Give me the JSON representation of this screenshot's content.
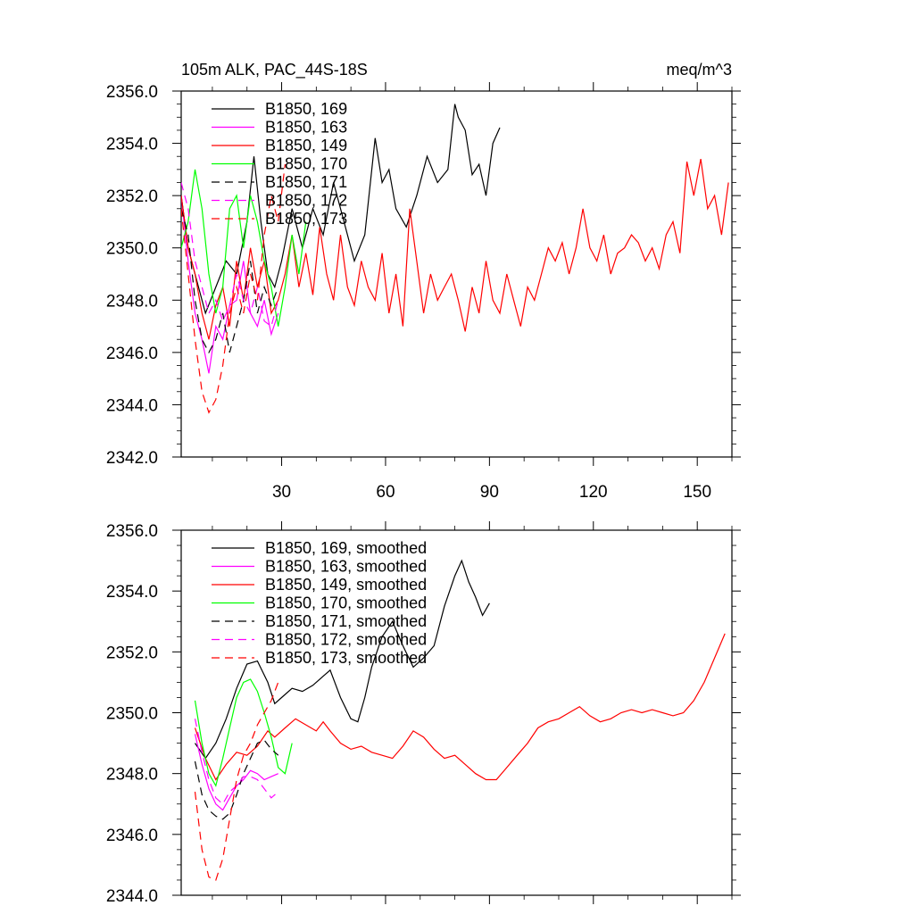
{
  "title_left": "105m ALK, PAC_44S-18S",
  "title_right": "meq/m^3",
  "chart_data": [
    {
      "type": "line",
      "panel": "top",
      "title": "105m ALK, PAC_44S-18S",
      "units": "meq/m^3",
      "xlim": [
        1,
        160
      ],
      "ylim": [
        2342.0,
        2356.0
      ],
      "x_ticks": [
        30,
        60,
        90,
        120,
        150
      ],
      "x_tick_labels": [
        "30",
        "60",
        "90",
        "120",
        "150"
      ],
      "y_ticks": [
        2342.0,
        2344.0,
        2346.0,
        2348.0,
        2350.0,
        2352.0,
        2354.0,
        2356.0
      ],
      "y_tick_labels": [
        "2342.0",
        "2344.0",
        "2346.0",
        "2348.0",
        "2350.0",
        "2352.0",
        "2354.0",
        "2356.0"
      ],
      "legend_position": "top-left",
      "series": [
        {
          "name": "B1850, 169",
          "color": "#000000",
          "dash": "solid",
          "x": [
            1,
            3,
            5,
            8,
            11,
            14,
            17,
            20,
            22,
            24,
            26,
            28,
            30,
            33,
            36,
            39,
            42,
            45,
            48,
            51,
            54,
            57,
            59,
            61,
            63,
            66,
            69,
            72,
            75,
            78,
            80,
            81,
            83,
            85,
            87,
            89,
            91,
            93
          ],
          "y": [
            2352.0,
            2350.0,
            2349.0,
            2347.5,
            2348.5,
            2349.5,
            2349.0,
            2351.0,
            2353.5,
            2351.0,
            2349.0,
            2348.5,
            2349.5,
            2351.5,
            2350.0,
            2351.5,
            2350.5,
            2352.5,
            2351.0,
            2349.5,
            2350.5,
            2354.2,
            2352.5,
            2353.0,
            2351.5,
            2350.8,
            2352.0,
            2353.5,
            2352.5,
            2353.0,
            2355.5,
            2355.0,
            2354.5,
            2352.8,
            2353.2,
            2352.0,
            2354.0,
            2354.6
          ]
        },
        {
          "name": "B1850, 163",
          "color": "#ff00ff",
          "dash": "solid",
          "x": [
            1,
            3,
            5,
            7,
            9,
            11,
            13,
            15,
            17,
            19,
            21,
            23,
            25,
            27,
            29
          ],
          "y": [
            2352.0,
            2349.5,
            2347.5,
            2346.5,
            2345.2,
            2347.0,
            2346.5,
            2347.8,
            2348.0,
            2349.5,
            2347.5,
            2347.0,
            2348.0,
            2346.7,
            2347.5
          ]
        },
        {
          "name": "B1850, 149",
          "color": "#ff0000",
          "dash": "solid",
          "x": [
            1,
            3,
            5,
            7,
            9,
            11,
            13,
            15,
            17,
            19,
            21,
            23,
            25,
            27,
            29,
            31,
            33,
            35,
            37,
            39,
            41,
            43,
            45,
            47,
            49,
            51,
            53,
            55,
            57,
            59,
            61,
            63,
            65,
            67,
            69,
            71,
            73,
            75,
            77,
            79,
            81,
            83,
            85,
            87,
            89,
            91,
            93,
            95,
            97,
            99,
            101,
            103,
            105,
            107,
            109,
            111,
            113,
            115,
            117,
            119,
            121,
            123,
            125,
            127,
            129,
            131,
            133,
            135,
            137,
            139,
            141,
            143,
            145,
            147,
            149,
            151,
            153,
            155,
            157,
            159
          ],
          "y": [
            2352.0,
            2350.0,
            2349.0,
            2347.5,
            2346.5,
            2347.8,
            2348.5,
            2347.0,
            2349.5,
            2348.0,
            2350.0,
            2348.5,
            2349.5,
            2347.5,
            2348.0,
            2349.0,
            2350.5,
            2348.5,
            2349.8,
            2348.2,
            2350.8,
            2349.0,
            2348.0,
            2350.5,
            2348.5,
            2347.8,
            2349.5,
            2348.5,
            2348.0,
            2349.8,
            2347.5,
            2349.0,
            2347.0,
            2351.5,
            2349.5,
            2347.5,
            2349.0,
            2348.0,
            2348.5,
            2349.0,
            2348.0,
            2346.8,
            2348.5,
            2347.5,
            2349.5,
            2348.0,
            2347.5,
            2349.0,
            2348.0,
            2347.0,
            2348.5,
            2348.0,
            2349.0,
            2350.0,
            2349.5,
            2350.2,
            2349.0,
            2350.0,
            2351.5,
            2350.0,
            2349.5,
            2350.5,
            2349.0,
            2349.8,
            2350.0,
            2350.5,
            2350.2,
            2349.5,
            2350.0,
            2349.2,
            2350.5,
            2351.0,
            2349.8,
            2353.3,
            2352.0,
            2353.4,
            2351.5,
            2352.0,
            2350.5,
            2352.5
          ]
        },
        {
          "name": "B1850, 170",
          "color": "#00ff00",
          "dash": "solid",
          "x": [
            1,
            3,
            5,
            7,
            9,
            11,
            13,
            15,
            17,
            19,
            21,
            23,
            25,
            27,
            29,
            31,
            33,
            35,
            37
          ],
          "y": [
            2350.0,
            2351.0,
            2353.0,
            2351.5,
            2349.0,
            2347.5,
            2348.5,
            2351.5,
            2352.0,
            2350.0,
            2352.0,
            2351.0,
            2349.5,
            2348.5,
            2347.0,
            2348.5,
            2350.5,
            2349.0,
            2351.0
          ]
        },
        {
          "name": "B1850, 171",
          "color": "#000000",
          "dash": "dashed",
          "x": [
            1,
            3,
            5,
            7,
            9,
            11,
            13,
            15,
            17,
            19,
            21,
            23,
            25,
            27,
            29
          ],
          "y": [
            2351.5,
            2350.5,
            2348.0,
            2346.5,
            2346.0,
            2346.5,
            2347.5,
            2346.0,
            2347.0,
            2348.0,
            2349.5,
            2347.5,
            2348.5,
            2347.8,
            2348.5
          ]
        },
        {
          "name": "B1850, 172",
          "color": "#ff00ff",
          "dash": "dashed",
          "x": [
            1,
            3,
            5,
            7,
            9,
            11,
            13,
            15,
            17,
            19,
            21,
            23,
            25,
            27,
            29
          ],
          "y": [
            2352.5,
            2351.5,
            2349.5,
            2348.5,
            2347.5,
            2348.0,
            2347.2,
            2347.8,
            2349.0,
            2348.0,
            2347.5,
            2348.5,
            2347.2,
            2347.0,
            2348.0
          ]
        },
        {
          "name": "B1850, 173",
          "color": "#ff0000",
          "dash": "dashed",
          "x": [
            1,
            3,
            5,
            7,
            9,
            11,
            13,
            15,
            17,
            19,
            21,
            23,
            25,
            27,
            29,
            31
          ],
          "y": [
            2351.5,
            2349.0,
            2346.5,
            2344.5,
            2343.7,
            2344.2,
            2345.5,
            2347.5,
            2348.5,
            2347.5,
            2349.0,
            2348.0,
            2350.5,
            2352.0,
            2351.0,
            2353.2
          ]
        }
      ]
    },
    {
      "type": "line",
      "panel": "bottom",
      "xlim": [
        1,
        160
      ],
      "ylim": [
        2344.0,
        2356.0
      ],
      "y_ticks": [
        2344.0,
        2346.0,
        2348.0,
        2350.0,
        2352.0,
        2354.0,
        2356.0
      ],
      "y_tick_labels": [
        "2344.0",
        "2346.0",
        "2348.0",
        "2350.0",
        "2352.0",
        "2354.0",
        "2356.0"
      ],
      "legend_position": "top-left",
      "series": [
        {
          "name": "B1850, 169, smoothed",
          "color": "#000000",
          "dash": "solid",
          "x": [
            5,
            8,
            11,
            14,
            17,
            20,
            23,
            26,
            28,
            30,
            33,
            36,
            39,
            42,
            44,
            47,
            50,
            52,
            54,
            56,
            59,
            62,
            65,
            68,
            71,
            74,
            77,
            80,
            82,
            84,
            86,
            88,
            90
          ],
          "y": [
            2349.0,
            2348.5,
            2349.0,
            2349.8,
            2350.8,
            2351.6,
            2351.7,
            2351.0,
            2350.3,
            2350.5,
            2350.8,
            2350.7,
            2350.9,
            2351.2,
            2351.4,
            2350.5,
            2349.8,
            2349.7,
            2350.5,
            2351.5,
            2352.5,
            2353.0,
            2352.2,
            2351.5,
            2351.8,
            2352.2,
            2353.5,
            2354.5,
            2355.0,
            2354.3,
            2353.8,
            2353.2,
            2353.6
          ]
        },
        {
          "name": "B1850, 163, smoothed",
          "color": "#ff00ff",
          "dash": "solid",
          "x": [
            5,
            7,
            9,
            11,
            13,
            15,
            17,
            19,
            21,
            23,
            25,
            27,
            29
          ],
          "y": [
            2349.3,
            2348.3,
            2347.5,
            2347.0,
            2346.8,
            2347.2,
            2347.6,
            2347.8,
            2348.1,
            2348.0,
            2347.8,
            2347.9,
            2348.0
          ]
        },
        {
          "name": "B1850, 149, smoothed",
          "color": "#ff0000",
          "dash": "solid",
          "x": [
            5,
            8,
            11,
            14,
            17,
            20,
            23,
            26,
            28,
            31,
            34,
            37,
            40,
            42,
            44,
            47,
            50,
            53,
            56,
            59,
            62,
            65,
            68,
            71,
            74,
            77,
            80,
            83,
            86,
            89,
            92,
            95,
            98,
            101,
            104,
            107,
            110,
            113,
            116,
            119,
            122,
            125,
            128,
            131,
            134,
            137,
            140,
            143,
            146,
            149,
            152,
            155,
            158
          ],
          "y": [
            2349.5,
            2348.5,
            2347.8,
            2348.3,
            2348.7,
            2348.6,
            2348.9,
            2349.4,
            2349.2,
            2349.5,
            2349.8,
            2349.6,
            2349.4,
            2349.7,
            2349.4,
            2349.0,
            2348.8,
            2348.9,
            2348.7,
            2348.6,
            2348.5,
            2348.9,
            2349.4,
            2349.2,
            2348.8,
            2348.5,
            2348.6,
            2348.3,
            2348.0,
            2347.8,
            2347.8,
            2348.2,
            2348.6,
            2349.0,
            2349.5,
            2349.7,
            2349.8,
            2350.0,
            2350.2,
            2349.9,
            2349.7,
            2349.8,
            2350.0,
            2350.1,
            2350.0,
            2350.1,
            2350.0,
            2349.9,
            2350.0,
            2350.4,
            2351.0,
            2351.8,
            2352.6
          ]
        },
        {
          "name": "B1850, 170, smoothed",
          "color": "#00ff00",
          "dash": "solid",
          "x": [
            5,
            7,
            9,
            11,
            13,
            15,
            17,
            19,
            21,
            23,
            25,
            27,
            29,
            31,
            33
          ],
          "y": [
            2350.4,
            2349.0,
            2348.0,
            2347.6,
            2348.5,
            2349.5,
            2350.5,
            2351.0,
            2351.1,
            2350.7,
            2350.0,
            2349.2,
            2348.2,
            2348.0,
            2349.0
          ]
        },
        {
          "name": "B1850, 171, smoothed",
          "color": "#000000",
          "dash": "dashed",
          "x": [
            5,
            7,
            9,
            11,
            13,
            15,
            17,
            19,
            21,
            23,
            25,
            27,
            29
          ],
          "y": [
            2348.4,
            2347.3,
            2346.8,
            2346.6,
            2346.5,
            2346.7,
            2347.3,
            2348.0,
            2348.5,
            2349.0,
            2349.1,
            2348.8,
            2348.6
          ]
        },
        {
          "name": "B1850, 172, smoothed",
          "color": "#ff00ff",
          "dash": "dashed",
          "x": [
            5,
            7,
            9,
            11,
            13,
            15,
            17,
            19,
            21,
            23,
            25,
            27,
            29
          ],
          "y": [
            2349.8,
            2348.7,
            2347.8,
            2347.2,
            2347.0,
            2347.4,
            2347.6,
            2347.9,
            2347.9,
            2347.8,
            2347.5,
            2347.2,
            2347.4
          ]
        },
        {
          "name": "B1850, 173, smoothed",
          "color": "#ff0000",
          "dash": "dashed",
          "x": [
            5,
            7,
            9,
            11,
            13,
            15,
            17,
            19,
            21,
            23,
            25,
            27,
            29
          ],
          "y": [
            2347.4,
            2345.5,
            2344.6,
            2344.5,
            2345.2,
            2346.5,
            2347.8,
            2348.6,
            2349.0,
            2349.6,
            2350.0,
            2350.4,
            2351.0
          ]
        }
      ]
    }
  ]
}
